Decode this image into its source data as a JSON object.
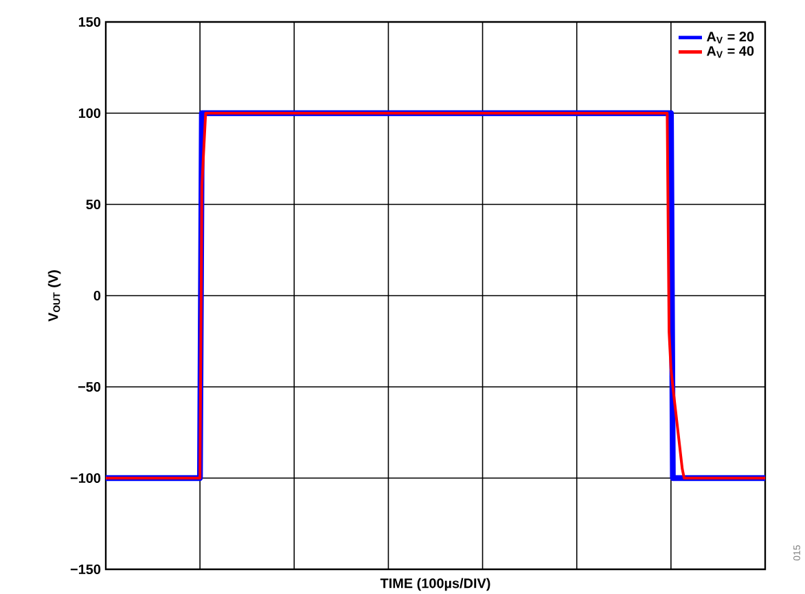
{
  "chart_data": {
    "type": "line",
    "xlabel": "TIME (100µs/DIV)",
    "ylabel": "V$_{OUT}$ (V)",
    "categories": [
      null,
      null,
      null,
      null,
      null,
      null,
      null,
      null,
      null,
      null,
      null,
      null,
      null,
      null,
      null,
      null,
      null,
      null,
      null,
      null,
      null,
      null,
      null,
      null,
      null,
      null,
      null,
      null,
      null,
      null,
      null,
      null,
      null,
      null,
      null,
      null,
      null,
      null,
      null,
      null,
      null,
      null,
      null,
      null,
      null,
      null,
      null,
      null,
      null,
      null,
      null,
      null,
      null,
      null,
      null,
      null,
      null,
      null,
      null,
      null,
      null,
      null,
      null,
      null,
      null,
      null,
      null,
      null,
      null,
      null,
      null,
      null,
      null,
      null,
      null,
      null,
      null,
      null,
      null,
      null,
      null,
      null,
      null,
      null,
      null,
      null,
      null,
      null,
      null,
      null,
      null,
      null,
      null,
      null,
      null,
      null,
      null,
      null,
      null,
      null,
      null,
      null,
      null,
      null,
      null,
      null,
      null,
      null,
      null,
      null,
      null,
      null,
      null,
      null,
      null,
      null,
      null,
      null,
      null,
      null,
      null,
      null,
      null,
      null,
      null,
      null,
      null,
      null,
      null,
      null,
      null,
      null,
      null,
      null,
      null,
      null,
      null,
      null,
      null,
      null,
      null,
      null,
      null,
      null,
      null,
      null,
      null,
      null,
      null,
      null,
      null,
      null,
      null,
      null,
      null,
      null,
      null,
      null,
      null,
      null,
      null,
      null,
      null,
      null,
      null,
      null,
      null,
      null,
      null,
      null,
      null,
      null,
      null,
      null,
      null,
      null,
      null,
      null,
      null,
      null,
      null,
      null,
      null,
      null,
      null,
      null,
      null,
      null,
      null,
      null,
      null,
      null,
      null,
      null,
      null,
      null,
      null,
      null,
      null,
      null,
      null,
      null,
      null,
      null,
      null,
      null,
      null,
      null,
      null,
      null,
      null,
      null,
      null,
      null,
      null,
      null,
      null,
      null,
      null,
      null,
      null,
      null,
      null,
      null,
      null,
      null,
      null,
      null,
      null,
      null,
      null,
      null,
      null,
      null,
      null,
      null,
      null,
      null,
      null,
      null,
      null,
      null,
      null,
      null,
      null,
      null,
      null,
      null,
      null,
      null,
      null,
      null,
      null,
      null,
      null,
      null,
      null,
      null,
      null,
      null,
      null,
      null,
      null,
      null,
      null,
      null,
      null,
      null,
      null,
      null,
      null,
      null,
      null,
      null,
      null,
      null,
      null,
      null,
      null,
      null,
      null,
      null,
      null,
      null,
      null,
      null,
      null,
      null,
      null,
      null,
      null,
      null,
      null,
      null,
      null,
      null,
      null,
      null,
      null,
      null,
      null,
      null,
      null,
      null,
      null,
      null,
      null,
      null,
      null,
      null,
      null,
      null,
      null,
      null,
      null,
      null,
      null,
      null,
      null,
      null,
      null,
      null,
      null,
      null,
      null,
      null,
      null,
      null,
      null,
      null,
      null,
      null,
      null,
      null,
      null,
      null,
      null,
      null,
      null,
      null,
      null,
      null,
      null,
      null,
      null,
      null,
      null,
      null,
      null,
      null,
      null
    ],
    "ylim": [
      -150,
      150
    ],
    "yticks": [
      {
        "value": -150,
        "label": "−150"
      },
      {
        "value": -100,
        "label": "−100"
      },
      {
        "value": -50,
        "label": "−50"
      },
      0,
      50,
      100,
      150
    ],
    "grid": true,
    "legend": "top right",
    "series": [
      {
        "name": "A$_{V}$ = 20",
        "color": "#0000ff",
        "values": [
          -100,
          -100,
          -100,
          -100,
          -100,
          -100,
          -100,
          -100,
          -100,
          -100,
          -100,
          -100,
          -100,
          -100,
          -100,
          -100,
          -100,
          -100,
          -100,
          -100,
          -100,
          -100,
          -100,
          -100,
          -100,
          -100,
          -100,
          -100,
          -100,
          -100,
          -100,
          -100,
          -100,
          -100,
          -100,
          -100,
          -100,
          -100,
          -100,
          -100,
          -100,
          -100,
          -100,
          -100,
          -100,
          -100,
          -100,
          -100,
          -100,
          -100,
          -100,
          100,
          100,
          100,
          100,
          100,
          100,
          100,
          100,
          100,
          100,
          100,
          100,
          100,
          100,
          100,
          100,
          100,
          100,
          100,
          100,
          100,
          100,
          100,
          100,
          100,
          100,
          100,
          100,
          100,
          100,
          100,
          100,
          100,
          100,
          100,
          100,
          100,
          100,
          100,
          100,
          100,
          100,
          100,
          100,
          100,
          100,
          100,
          100,
          100,
          100,
          100,
          100,
          100,
          100,
          100,
          100,
          100,
          100,
          100,
          100,
          100,
          100,
          100,
          100,
          100,
          100,
          100,
          100,
          100,
          100,
          100,
          100,
          100,
          100,
          100,
          100,
          100,
          100,
          100,
          100,
          100,
          100,
          100,
          100,
          100,
          100,
          100,
          100,
          100,
          100,
          100,
          100,
          100,
          100,
          100,
          100,
          100,
          100,
          100,
          100,
          100,
          100,
          100,
          100,
          100,
          100,
          100,
          100,
          100,
          100,
          100,
          100,
          100,
          100,
          100,
          100,
          100,
          100,
          100,
          100,
          100,
          100,
          100,
          100,
          100,
          100,
          100,
          100,
          100,
          100,
          100,
          100,
          100,
          100,
          100,
          100,
          100,
          100,
          100,
          100,
          100,
          100,
          100,
          100,
          100,
          100,
          100,
          100,
          100,
          100,
          100,
          100,
          100,
          100,
          100,
          100,
          100,
          100,
          100,
          100,
          100,
          100,
          100,
          100,
          100,
          100,
          100,
          100,
          100,
          100,
          100,
          100,
          100,
          100,
          100,
          100,
          100,
          100,
          100,
          100,
          100,
          100,
          100,
          100,
          100,
          100,
          100,
          100,
          100,
          100,
          100,
          100,
          100,
          100,
          100,
          100,
          100,
          100,
          100,
          100,
          100,
          100,
          100,
          100,
          100,
          100,
          100,
          100,
          100,
          100,
          100,
          100,
          100,
          100,
          100,
          100,
          100,
          100,
          100,
          100,
          100,
          100,
          100,
          100,
          100,
          100,
          100,
          100,
          100,
          100,
          100,
          100,
          100,
          100,
          100,
          100,
          100,
          100,
          100,
          100,
          100,
          100,
          100,
          100,
          100,
          100,
          100,
          100,
          100,
          100,
          -100,
          -100,
          -100,
          -100,
          -100,
          -100,
          -100,
          -100,
          -100,
          -100,
          -100,
          -100,
          -100,
          -100,
          -100,
          -100,
          -100,
          -100,
          -100,
          -100,
          -100,
          -100,
          -100,
          -100,
          -100,
          -100,
          -100,
          -100,
          -100,
          -100,
          -100,
          -100,
          -100,
          -100,
          -100,
          -100,
          -100,
          -100,
          -100,
          -100,
          -100,
          -100,
          -100,
          -100,
          -100,
          -100,
          -100,
          -100,
          -100,
          -100
        ]
      },
      {
        "name": "A$_{V}$ = 40",
        "color": "#ff0000",
        "values": [
          -100,
          -100,
          -100,
          -100,
          -100,
          -100,
          -100,
          -100,
          -100,
          -100,
          -100,
          -100,
          -100,
          -100,
          -100,
          -100,
          -100,
          -100,
          -100,
          -100,
          -100,
          -100,
          -100,
          -100,
          -100,
          -100,
          -100,
          -100,
          -100,
          -100,
          -100,
          -100,
          -100,
          -100,
          -100,
          -100,
          -100,
          -100,
          -100,
          -100,
          -100,
          -100,
          -100,
          -100,
          -100,
          -100,
          -100,
          -100,
          -100,
          -100,
          -100,
          60,
          80,
          100,
          100,
          100,
          100,
          100,
          100,
          100,
          100,
          100,
          100,
          100,
          100,
          100,
          100,
          100,
          100,
          100,
          100,
          100,
          100,
          100,
          100,
          100,
          100,
          100,
          100,
          100,
          100,
          100,
          100,
          100,
          100,
          100,
          100,
          100,
          100,
          100,
          100,
          100,
          100,
          100,
          100,
          100,
          100,
          100,
          100,
          100,
          100,
          100,
          100,
          100,
          100,
          100,
          100,
          100,
          100,
          100,
          100,
          100,
          100,
          100,
          100,
          100,
          100,
          100,
          100,
          100,
          100,
          100,
          100,
          100,
          100,
          100,
          100,
          100,
          100,
          100,
          100,
          100,
          100,
          100,
          100,
          100,
          100,
          100,
          100,
          100,
          100,
          100,
          100,
          100,
          100,
          100,
          100,
          100,
          100,
          100,
          100,
          100,
          100,
          100,
          100,
          100,
          100,
          100,
          100,
          100,
          100,
          100,
          100,
          100,
          100,
          100,
          100,
          100,
          100,
          100,
          100,
          100,
          100,
          100,
          100,
          100,
          100,
          100,
          100,
          100,
          100,
          100,
          100,
          100,
          100,
          100,
          100,
          100,
          100,
          100,
          100,
          100,
          100,
          100,
          100,
          100,
          100,
          100,
          100,
          100,
          100,
          100,
          100,
          100,
          100,
          100,
          100,
          100,
          100,
          100,
          100,
          100,
          100,
          100,
          100,
          100,
          100,
          100,
          100,
          100,
          100,
          100,
          100,
          100,
          100,
          100,
          100,
          100,
          100,
          100,
          100,
          100,
          100,
          100,
          100,
          100,
          100,
          100,
          100,
          100,
          100,
          100,
          100,
          100,
          100,
          100,
          100,
          100,
          100,
          100,
          100,
          100,
          100,
          100,
          100,
          100,
          100,
          100,
          100,
          100,
          100,
          100,
          100,
          100,
          100,
          100,
          100,
          100,
          100,
          100,
          100,
          100,
          100,
          100,
          100,
          100,
          100,
          100,
          100,
          100,
          100,
          100,
          100,
          100,
          100,
          100,
          100,
          100,
          100,
          100,
          100,
          100,
          100,
          100,
          100,
          100,
          100,
          100,
          100,
          -20,
          -40,
          -50,
          -59,
          -68,
          -77,
          -86,
          -95,
          -100,
          -100,
          -100,
          -100,
          -100,
          -100,
          -100,
          -100,
          -100,
          -100,
          -100,
          -100,
          -100,
          -100,
          -100,
          -100,
          -100,
          -100,
          -100,
          -100,
          -100,
          -100,
          -100,
          -100,
          -100,
          -100,
          -100,
          -100,
          -100,
          -100,
          -100,
          -100,
          -100,
          -100,
          -100,
          -100,
          -100,
          -100,
          -100,
          -100,
          -100,
          -100,
          -100,
          -100
        ]
      }
    ],
    "annotations": [
      "015"
    ]
  }
}
